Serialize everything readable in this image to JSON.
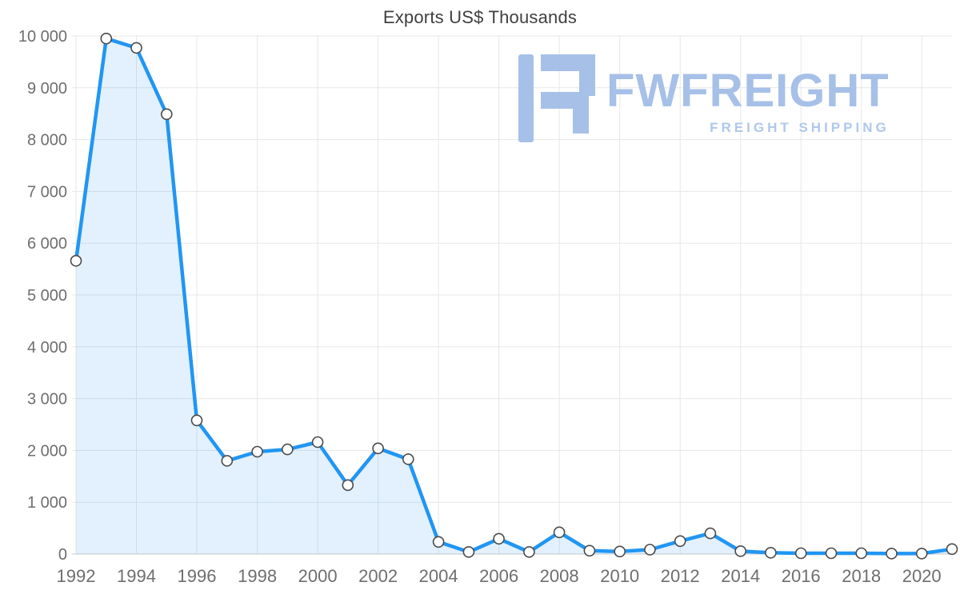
{
  "logo": {
    "brand": "FWFREIGHT",
    "tagline": "FREIGHT SHIPPING",
    "color": "#a6c0e8",
    "tagline_color": "#afc7ec"
  },
  "chart_data": {
    "type": "area",
    "title": "Exports US$ Thousands",
    "series_name": "Exports US$ Thousands",
    "x": [
      1992,
      1993,
      1994,
      1995,
      1996,
      1997,
      1998,
      1999,
      2000,
      2001,
      2002,
      2003,
      2004,
      2005,
      2006,
      2007,
      2008,
      2009,
      2010,
      2011,
      2012,
      2013,
      2014,
      2015,
      2016,
      2017,
      2018,
      2019,
      2020,
      2021
    ],
    "values": [
      5660,
      9950,
      9770,
      8490,
      2580,
      1800,
      1975,
      2020,
      2160,
      1330,
      2040,
      1830,
      235,
      40,
      295,
      40,
      420,
      65,
      50,
      85,
      250,
      400,
      55,
      25,
      15,
      15,
      15,
      10,
      10,
      95
    ],
    "xlabel": "",
    "ylabel": "",
    "ylim": [
      0,
      10000
    ],
    "y_ticks": [
      0,
      1000,
      2000,
      3000,
      4000,
      5000,
      6000,
      7000,
      8000,
      9000,
      10000
    ],
    "y_tick_labels": [
      "0",
      "1 000",
      "2 000",
      "3 000",
      "4 000",
      "5 000",
      "6 000",
      "7 000",
      "8 000",
      "9 000",
      "10 000"
    ],
    "x_ticks": [
      1992,
      1994,
      1996,
      1998,
      2000,
      2002,
      2004,
      2006,
      2008,
      2010,
      2012,
      2014,
      2016,
      2018,
      2020
    ],
    "x_tick_labels": [
      "1992",
      "1994",
      "1996",
      "1998",
      "2000",
      "2002",
      "2004",
      "2006",
      "2008",
      "2010",
      "2012",
      "2014",
      "2016",
      "2018",
      "2020"
    ],
    "grid": true,
    "legend": "none",
    "line_color": "#2196f3",
    "fill_color": "rgba(33,150,243,0.13)",
    "marker_fill": "#ffffff",
    "marker_stroke": "#4a4a4a",
    "grid_color": "#e7e7e7",
    "zero_line_color": "#c9c9c9",
    "axis_label_color": "#6e6e6e",
    "title_color": "#3f3f3f"
  }
}
